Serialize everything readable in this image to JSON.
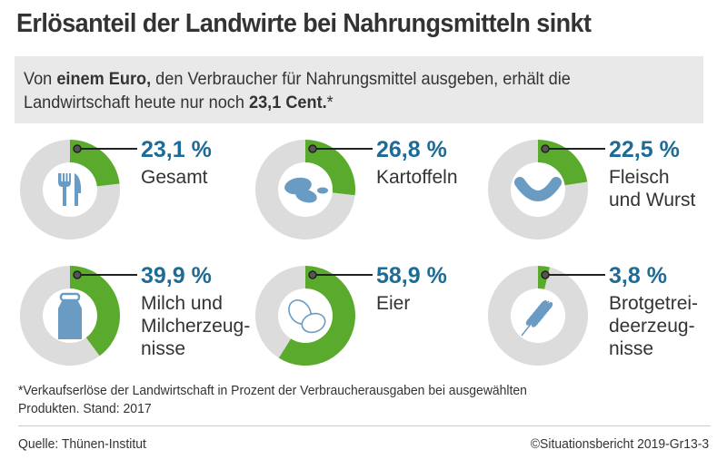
{
  "title": "Erlösanteil der Landwirte bei Nahrungsmitteln sinkt",
  "intro": {
    "part1": "Von ",
    "bold1": "einem Euro,",
    "part2": " den Verbraucher für Nahrungsmittel ausgeben, erhält die Landwirtschaft heute nur noch ",
    "bold2": "23,1 Cent.",
    "part3": "*"
  },
  "colors": {
    "share": "#5aab2d",
    "remainder": "#dcdcdc",
    "value_text": "#1e6b95",
    "icon": "#6a9bc3"
  },
  "chart_data": {
    "type": "pie",
    "subtype": "donut-small-multiples",
    "title": "Erlösanteil der Landwirte bei Nahrungsmitteln sinkt",
    "unit": "%",
    "series": [
      {
        "name": "Gesamt",
        "label": "23,1 %",
        "value": 23.1,
        "label_lines": [
          "Gesamt"
        ],
        "icon": "cutlery-icon"
      },
      {
        "name": "Kartoffeln",
        "label": "26,8 %",
        "value": 26.8,
        "label_lines": [
          "Kartoffeln"
        ],
        "icon": "potatoes-icon"
      },
      {
        "name": "Fleisch und Wurst",
        "label": "22,5 %",
        "value": 22.5,
        "label_lines": [
          "Fleisch",
          "und Wurst"
        ],
        "icon": "sausage-icon"
      },
      {
        "name": "Milch und Milcherzeugnisse",
        "label": "39,9 %",
        "value": 39.9,
        "label_lines": [
          "Milch und",
          "Milcherzeug-",
          "nisse"
        ],
        "icon": "milk-can-icon"
      },
      {
        "name": "Eier",
        "label": "58,9 %",
        "value": 58.9,
        "label_lines": [
          "Eier"
        ],
        "icon": "eggs-icon"
      },
      {
        "name": "Brotgetreideerzeugnisse",
        "label": "3,8 %",
        "value": 3.8,
        "label_lines": [
          "Brotgetrei-",
          "deerzeug-",
          "nisse"
        ],
        "icon": "wheat-icon"
      }
    ],
    "total": 100
  },
  "footnote": {
    "line1": "*Verkaufserlöse der Landwirtschaft in Prozent der Verbraucherausgaben bei ausgewählten",
    "line2": " Produkten. Stand: 2017"
  },
  "source": "Quelle: Thünen-Institut",
  "copyright": "©Situationsbericht 2019-Gr13-3"
}
